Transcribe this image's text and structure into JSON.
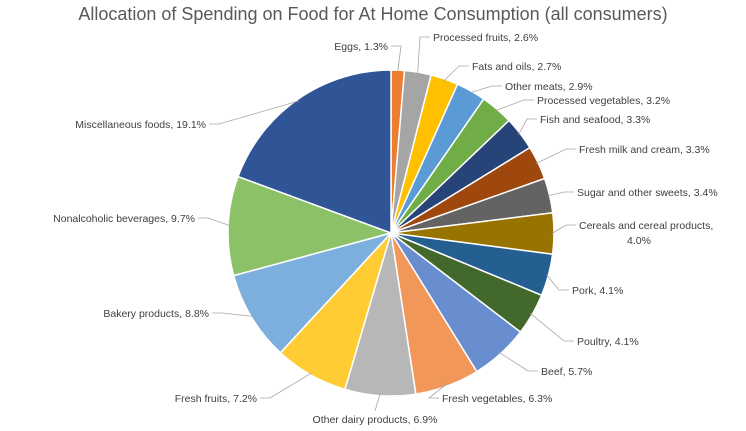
{
  "chart_data": {
    "type": "pie",
    "title": "Allocation of Spending on Food for At Home Consumption (all consumers)",
    "slices": [
      {
        "label": "Eggs",
        "value": 1.3,
        "display": "Eggs, 1.3%",
        "color": "#ED7D31"
      },
      {
        "label": "Processed fruits",
        "value": 2.6,
        "display": "Processed fruits, 2.6%",
        "color": "#A5A5A5"
      },
      {
        "label": "Fats and oils",
        "value": 2.7,
        "display": "Fats and oils, 2.7%",
        "color": "#FFC000"
      },
      {
        "label": "Other meats",
        "value": 2.9,
        "display": "Other meats, 2.9%",
        "color": "#5B9BD5"
      },
      {
        "label": "Processed vegetables",
        "value": 3.2,
        "display": "Processed vegetables, 3.2%",
        "color": "#70AD47"
      },
      {
        "label": "Fish and seafood",
        "value": 3.3,
        "display": "Fish and seafood, 3.3%",
        "color": "#264478"
      },
      {
        "label": "Fresh milk and cream",
        "value": 3.3,
        "display": "Fresh milk and cream, 3.3%",
        "color": "#9E480E"
      },
      {
        "label": "Sugar and other sweets",
        "value": 3.4,
        "display": "Sugar and other sweets, 3.4%",
        "color": "#636363"
      },
      {
        "label": "Cereals and cereal products",
        "value": 4.0,
        "display": "Cereals and cereal products,\n4.0%",
        "color": "#997300"
      },
      {
        "label": "Pork",
        "value": 4.1,
        "display": "Pork, 4.1%",
        "color": "#255E91"
      },
      {
        "label": "Poultry",
        "value": 4.1,
        "display": "Poultry, 4.1%",
        "color": "#43682B"
      },
      {
        "label": "Beef",
        "value": 5.7,
        "display": "Beef, 5.7%",
        "color": "#698ED0"
      },
      {
        "label": "Fresh vegetables",
        "value": 6.3,
        "display": "Fresh vegetables, 6.3%",
        "color": "#F1975A"
      },
      {
        "label": "Other dairy products",
        "value": 6.9,
        "display": "Other dairy products, 6.9%",
        "color": "#B7B7B7"
      },
      {
        "label": "Fresh fruits",
        "value": 7.2,
        "display": "Fresh fruits, 7.2%",
        "color": "#FFCD33"
      },
      {
        "label": "Bakery products",
        "value": 8.8,
        "display": "Bakery products, 8.8%",
        "color": "#7CAFDD"
      },
      {
        "label": "Nonalcoholic beverages",
        "value": 9.7,
        "display": "Nonalcoholic beverages, 9.7%",
        "color": "#8CC168"
      },
      {
        "label": "Miscellaneous foods",
        "value": 19.1,
        "display": "Miscellaneous foods, 19.1%",
        "color": "#2F5597"
      }
    ]
  }
}
